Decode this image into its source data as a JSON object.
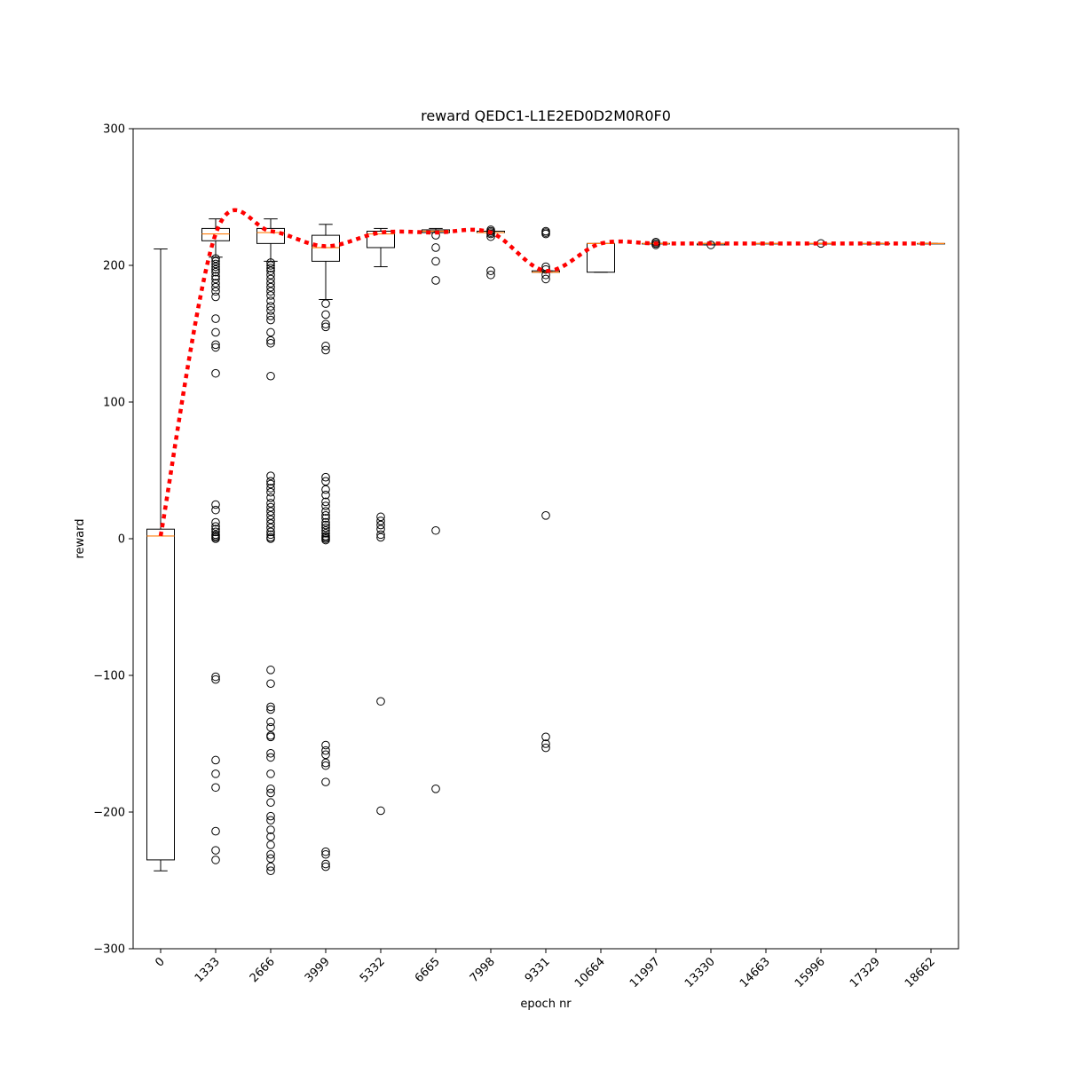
{
  "chart_data": {
    "type": "box",
    "title": "reward QEDC1-L1E2ED0D2M0R0F0",
    "xlabel": "epoch nr",
    "ylabel": "reward",
    "ylim": [
      -300,
      300
    ],
    "yticks": [
      -300,
      -200,
      -100,
      0,
      100,
      200,
      300
    ],
    "categories": [
      "0",
      "1333",
      "2666",
      "3999",
      "5332",
      "6665",
      "7998",
      "9331",
      "10664",
      "11997",
      "13330",
      "14663",
      "15996",
      "17329",
      "18662"
    ],
    "boxes": [
      {
        "whislo": -243,
        "q1": -235,
        "med": 2,
        "q3": 7,
        "whishi": 212,
        "fliers": []
      },
      {
        "whislo": 206,
        "q1": 218,
        "med": 223,
        "q3": 227,
        "whishi": 234,
        "fliers": [
          205,
          203,
          201,
          199,
          197,
          195,
          192,
          190,
          187,
          184,
          181,
          177,
          161,
          151,
          142,
          140,
          121,
          25,
          21,
          12,
          9,
          7,
          5,
          3,
          2,
          1,
          0,
          -101,
          -103,
          -162,
          -172,
          -182,
          -214,
          -228,
          -235
        ]
      },
      {
        "whislo": 203,
        "q1": 216,
        "med": 224,
        "q3": 227,
        "whishi": 234,
        "fliers": [
          202,
          200,
          198,
          196,
          193,
          190,
          187,
          184,
          181,
          178,
          174,
          170,
          167,
          163,
          160,
          151,
          145,
          143,
          119,
          46,
          42,
          40,
          37,
          34,
          30,
          26,
          23,
          20,
          17,
          14,
          11,
          8,
          5,
          3,
          1,
          0,
          -96,
          -106,
          -123,
          -125,
          -134,
          -138,
          -144,
          -145,
          -157,
          -160,
          -172,
          -183,
          -186,
          -193,
          -203,
          -206,
          -213,
          -218,
          -224,
          -231,
          -234,
          -240,
          -243
        ]
      },
      {
        "whislo": 175,
        "q1": 203,
        "med": 213,
        "q3": 222,
        "whishi": 230,
        "fliers": [
          172,
          164,
          157,
          155,
          141,
          138,
          45,
          42,
          36,
          32,
          27,
          24,
          20,
          17,
          15,
          12,
          10,
          8,
          6,
          4,
          2,
          1,
          0,
          -1,
          -151,
          -155,
          -158,
          -164,
          -166,
          -178,
          -229,
          -231,
          -238,
          -240
        ]
      },
      {
        "whislo": 199,
        "q1": 213,
        "med": 223,
        "q3": 225,
        "whishi": 227,
        "fliers": [
          16,
          13,
          10,
          7,
          3,
          1,
          -119,
          -199
        ]
      },
      {
        "whislo": 224,
        "q1": 224,
        "med": 225,
        "q3": 226,
        "whishi": 227,
        "fliers": [
          222,
          213,
          203,
          189,
          6,
          -183
        ]
      },
      {
        "whislo": 224,
        "q1": 224,
        "med": 224,
        "q3": 225,
        "whishi": 225,
        "fliers": [
          226,
          225,
          224,
          223,
          221,
          196,
          193
        ]
      },
      {
        "whislo": 195,
        "q1": 195,
        "med": 195,
        "q3": 196,
        "whishi": 196,
        "fliers": [
          225,
          224,
          223,
          199,
          197,
          193,
          190,
          17,
          -145,
          -150,
          -153
        ]
      },
      {
        "whislo": 195,
        "q1": 195,
        "med": 216,
        "q3": 216,
        "whishi": 216,
        "fliers": []
      },
      {
        "whislo": 216,
        "q1": 216,
        "med": 216,
        "q3": 216,
        "whishi": 216,
        "fliers": [
          217,
          216,
          215
        ]
      },
      {
        "whislo": 215,
        "q1": 215,
        "med": 216,
        "q3": 216,
        "whishi": 216,
        "fliers": [
          215
        ]
      },
      {
        "whislo": 216,
        "q1": 216,
        "med": 216,
        "q3": 216,
        "whishi": 216,
        "fliers": []
      },
      {
        "whislo": 216,
        "q1": 216,
        "med": 216,
        "q3": 216,
        "whishi": 216,
        "fliers": [
          216
        ]
      },
      {
        "whislo": 216,
        "q1": 216,
        "med": 216,
        "q3": 216,
        "whishi": 216,
        "fliers": []
      },
      {
        "whislo": 216,
        "q1": 216,
        "med": 216,
        "q3": 216,
        "whishi": 216,
        "fliers": []
      }
    ],
    "trend_line": {
      "style": "dotted",
      "color": "#ff0000",
      "values": [
        2,
        223,
        225,
        214,
        224,
        224,
        224,
        196,
        216,
        216,
        216,
        216,
        216,
        216,
        216
      ]
    },
    "median_color": "#ff7f0e",
    "grid": false,
    "legend": "none"
  }
}
